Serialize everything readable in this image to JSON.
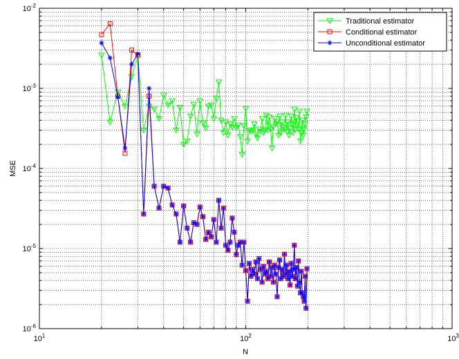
{
  "chart_data": {
    "type": "line",
    "xlabel": "N",
    "ylabel": "MSE",
    "x_scale": "log",
    "y_scale": "log",
    "xlim": [
      10,
      1000
    ],
    "ylim": [
      1e-06,
      0.01
    ],
    "x_ticks": [
      {
        "value": 10,
        "base": "10",
        "exp": "1"
      },
      {
        "value": 100,
        "base": "10",
        "exp": "2"
      },
      {
        "value": 1000,
        "base": "10",
        "exp": "3"
      }
    ],
    "y_ticks": [
      {
        "value": 1e-06,
        "base": "10",
        "exp": "-6"
      },
      {
        "value": 1e-05,
        "base": "10",
        "exp": "-5"
      },
      {
        "value": 0.0001,
        "base": "10",
        "exp": "-4"
      },
      {
        "value": 0.001,
        "base": "10",
        "exp": "-3"
      },
      {
        "value": 0.01,
        "base": "10",
        "exp": "-2"
      }
    ],
    "grid": true,
    "legend_position": "top-right",
    "series": [
      {
        "name": "Traditional estimator",
        "color": "#00ff00",
        "marker": "triangle-down",
        "points": [
          [
            20,
            0.0026
          ],
          [
            22,
            0.00038
          ],
          [
            24,
            0.0009
          ],
          [
            26,
            0.0006
          ],
          [
            28,
            0.0014
          ],
          [
            30,
            0.0026
          ],
          [
            32,
            0.0003
          ],
          [
            34,
            0.0006
          ],
          [
            36,
            0.00055
          ],
          [
            38,
            0.00042
          ],
          [
            40,
            0.00082
          ],
          [
            42,
            0.00062
          ],
          [
            44,
            0.0007
          ],
          [
            46,
            0.0003
          ],
          [
            48,
            0.00058
          ],
          [
            50,
            0.0002
          ],
          [
            52,
            0.00022
          ],
          [
            54,
            0.00045
          ],
          [
            56,
            0.00063
          ],
          [
            58,
            0.00027
          ],
          [
            60,
            0.0007
          ],
          [
            62,
            0.00037
          ],
          [
            64,
            0.00032
          ],
          [
            66,
            0.0006
          ],
          [
            68,
            0.00062
          ],
          [
            70,
            0.00042
          ],
          [
            72,
            0.00075
          ],
          [
            74,
            0.0012
          ],
          [
            76,
            0.0004
          ],
          [
            78,
            0.00028
          ],
          [
            80,
            0.00038
          ],
          [
            82,
            0.00026
          ],
          [
            84,
            0.00036
          ],
          [
            86,
            0.00033
          ],
          [
            88,
            0.00042
          ],
          [
            90,
            0.00032
          ],
          [
            92,
            0.00035
          ],
          [
            94,
            0.00025
          ],
          [
            96,
            0.00015
          ],
          [
            98,
            0.00034
          ],
          [
            100,
            0.00056
          ],
          [
            102,
            0.00022
          ],
          [
            104,
            0.0003
          ],
          [
            106,
            0.00029
          ],
          [
            108,
            0.0003
          ],
          [
            110,
            0.00036
          ],
          [
            112,
            0.00027
          ],
          [
            114,
            0.00024
          ],
          [
            116,
            0.00031
          ],
          [
            118,
            0.00029
          ],
          [
            120,
            0.00042
          ],
          [
            122,
            0.00028
          ],
          [
            124,
            0.0003
          ],
          [
            126,
            0.00046
          ],
          [
            128,
            0.0003
          ],
          [
            130,
            0.00044
          ],
          [
            132,
            0.00031
          ],
          [
            134,
            0.00018
          ],
          [
            136,
            0.00033
          ],
          [
            138,
            0.00042
          ],
          [
            140,
            0.00036
          ],
          [
            142,
            0.00038
          ],
          [
            144,
            0.00026
          ],
          [
            146,
            0.00045
          ],
          [
            148,
            0.00028
          ],
          [
            150,
            0.00038
          ],
          [
            152,
            0.00033
          ],
          [
            154,
            0.00031
          ],
          [
            156,
            0.00046
          ],
          [
            158,
            0.00029
          ],
          [
            160,
            0.00038
          ],
          [
            162,
            0.00026
          ],
          [
            164,
            0.00032
          ],
          [
            166,
            0.00045
          ],
          [
            168,
            0.00036
          ],
          [
            170,
            0.00028
          ],
          [
            172,
            0.00055
          ],
          [
            174,
            0.00031
          ],
          [
            176,
            0.00043
          ],
          [
            178,
            0.00035
          ],
          [
            180,
            0.00031
          ],
          [
            182,
            0.00052
          ],
          [
            184,
            0.00022
          ],
          [
            186,
            0.00028
          ],
          [
            188,
            0.0004
          ],
          [
            190,
            0.00026
          ],
          [
            192,
            0.00031
          ],
          [
            194,
            0.00036
          ],
          [
            196,
            0.00044
          ],
          [
            198,
            0.00052
          ]
        ]
      },
      {
        "name": "Conditional estimator",
        "color": "#ff0000",
        "marker": "square",
        "points": [
          [
            20,
            0.0047
          ],
          [
            22,
            0.0064
          ],
          [
            24,
            0.0008
          ],
          [
            26,
            0.000155
          ],
          [
            28,
            0.003
          ],
          [
            30,
            0.0026
          ],
          [
            32,
            2.7e-05
          ],
          [
            34,
            0.0008
          ],
          [
            36,
            6e-05
          ],
          [
            38,
            3.2e-05
          ],
          [
            40,
            6e-05
          ],
          [
            42,
            5.7e-05
          ],
          [
            44,
            3.5e-05
          ],
          [
            46,
            2.7e-05
          ],
          [
            48,
            1.2e-05
          ],
          [
            50,
            3.4e-05
          ],
          [
            52,
            1.8e-05
          ],
          [
            54,
            1.2e-05
          ],
          [
            56,
            2.1e-05
          ],
          [
            58,
            2e-05
          ],
          [
            60,
            3.3e-05
          ],
          [
            62,
            2.5e-05
          ],
          [
            64,
            1.3e-05
          ],
          [
            66,
            1.6e-05
          ],
          [
            68,
            1.4e-05
          ],
          [
            70,
            2.3e-05
          ],
          [
            72,
            1.2e-05
          ],
          [
            74,
            4e-05
          ],
          [
            76,
            1.8e-05
          ],
          [
            78,
            3.2e-05
          ],
          [
            80,
            1.1e-05
          ],
          [
            82,
            9.5e-06
          ],
          [
            84,
            1.2e-05
          ],
          [
            86,
            2.4e-05
          ],
          [
            88,
            1.6e-05
          ],
          [
            90,
            8.4e-06
          ],
          [
            92,
            1.1e-05
          ],
          [
            94,
            1.2e-05
          ],
          [
            96,
            6.2e-06
          ],
          [
            98,
            1.2e-05
          ],
          [
            100,
            5.3e-06
          ],
          [
            102,
            2.2e-06
          ],
          [
            104,
            6.5e-06
          ],
          [
            106,
            4.5e-06
          ],
          [
            108,
            5.5e-06
          ],
          [
            110,
            4.8e-06
          ],
          [
            112,
            6.8e-06
          ],
          [
            114,
            4.2e-06
          ],
          [
            116,
            7.5e-06
          ],
          [
            118,
            5.5e-06
          ],
          [
            120,
            3.8e-06
          ],
          [
            122,
            6e-06
          ],
          [
            124,
            4.8e-06
          ],
          [
            126,
            5.2e-06
          ],
          [
            128,
            4.2e-06
          ],
          [
            130,
            6.8e-06
          ],
          [
            132,
            4.5e-06
          ],
          [
            134,
            5.8e-06
          ],
          [
            136,
            3.8e-06
          ],
          [
            138,
            6.2e-06
          ],
          [
            140,
            4.8e-06
          ],
          [
            142,
            2.5e-06
          ],
          [
            144,
            5.8e-06
          ],
          [
            146,
            7.2e-06
          ],
          [
            148,
            4.2e-06
          ],
          [
            150,
            5.5e-06
          ],
          [
            152,
            4.5e-06
          ],
          [
            154,
            8.5e-06
          ],
          [
            156,
            4.8e-06
          ],
          [
            158,
            6.2e-06
          ],
          [
            160,
            4.2e-06
          ],
          [
            162,
            5.2e-06
          ],
          [
            164,
            3.5e-06
          ],
          [
            166,
            6.5e-06
          ],
          [
            168,
            4.5e-06
          ],
          [
            170,
            5.5e-06
          ],
          [
            172,
            1.1e-05
          ],
          [
            174,
            4.2e-06
          ],
          [
            176,
            5.8e-06
          ],
          [
            178,
            3.4e-06
          ],
          [
            180,
            7e-06
          ],
          [
            182,
            3.8e-06
          ],
          [
            184,
            2.8e-06
          ],
          [
            186,
            5.2e-06
          ],
          [
            188,
            2.8e-06
          ],
          [
            190,
            2.5e-06
          ],
          [
            192,
            2.2e-06
          ],
          [
            194,
            4.5e-06
          ],
          [
            196,
            1.8e-06
          ],
          [
            198,
            5.6e-06
          ]
        ]
      },
      {
        "name": "Unconditional estimator",
        "color": "#0000ff",
        "marker": "asterisk",
        "points": [
          [
            20,
            0.0037
          ],
          [
            22,
            0.0024
          ],
          [
            24,
            0.00078
          ],
          [
            26,
            0.00018
          ],
          [
            28,
            0.002
          ],
          [
            30,
            0.0027
          ],
          [
            32,
            2.7e-05
          ],
          [
            34,
            0.001
          ],
          [
            36,
            6e-05
          ],
          [
            38,
            3.2e-05
          ],
          [
            40,
            6e-05
          ],
          [
            42,
            5.7e-05
          ],
          [
            44,
            3.5e-05
          ],
          [
            46,
            2.7e-05
          ],
          [
            48,
            1.2e-05
          ],
          [
            50,
            3.4e-05
          ],
          [
            52,
            1.8e-05
          ],
          [
            54,
            1.2e-05
          ],
          [
            56,
            2.1e-05
          ],
          [
            58,
            2e-05
          ],
          [
            60,
            3.3e-05
          ],
          [
            62,
            2.5e-05
          ],
          [
            64,
            1.3e-05
          ],
          [
            66,
            1.6e-05
          ],
          [
            68,
            1.4e-05
          ],
          [
            70,
            2.3e-05
          ],
          [
            72,
            1.2e-05
          ],
          [
            74,
            4e-05
          ],
          [
            76,
            1.8e-05
          ],
          [
            78,
            3.2e-05
          ],
          [
            80,
            1.1e-05
          ],
          [
            82,
            9.5e-06
          ],
          [
            84,
            1.2e-05
          ],
          [
            86,
            2.4e-05
          ],
          [
            88,
            1.6e-05
          ],
          [
            90,
            8.4e-06
          ],
          [
            92,
            1.1e-05
          ],
          [
            94,
            1.2e-05
          ],
          [
            96,
            6.2e-06
          ],
          [
            98,
            1.2e-05
          ],
          [
            100,
            5.3e-06
          ],
          [
            102,
            2.2e-06
          ],
          [
            104,
            6.5e-06
          ],
          [
            106,
            4.5e-06
          ],
          [
            108,
            5.5e-06
          ],
          [
            110,
            4.8e-06
          ],
          [
            112,
            6.8e-06
          ],
          [
            114,
            4.2e-06
          ],
          [
            116,
            7.5e-06
          ],
          [
            118,
            5.5e-06
          ],
          [
            120,
            3.8e-06
          ],
          [
            122,
            6e-06
          ],
          [
            124,
            4.8e-06
          ],
          [
            126,
            5.2e-06
          ],
          [
            128,
            4.2e-06
          ],
          [
            130,
            6.8e-06
          ],
          [
            132,
            4.5e-06
          ],
          [
            134,
            5.8e-06
          ],
          [
            136,
            3.8e-06
          ],
          [
            138,
            6.2e-06
          ],
          [
            140,
            4.8e-06
          ],
          [
            142,
            2.5e-06
          ],
          [
            144,
            5.8e-06
          ],
          [
            146,
            7.2e-06
          ],
          [
            148,
            4.2e-06
          ],
          [
            150,
            5.5e-06
          ],
          [
            152,
            4.5e-06
          ],
          [
            154,
            8.5e-06
          ],
          [
            156,
            4.8e-06
          ],
          [
            158,
            6.2e-06
          ],
          [
            160,
            4.2e-06
          ],
          [
            162,
            5.2e-06
          ],
          [
            164,
            3.5e-06
          ],
          [
            166,
            6.5e-06
          ],
          [
            168,
            4.5e-06
          ],
          [
            170,
            5.5e-06
          ],
          [
            172,
            1.1e-05
          ],
          [
            174,
            4.2e-06
          ],
          [
            176,
            5.8e-06
          ],
          [
            178,
            3.4e-06
          ],
          [
            180,
            7e-06
          ],
          [
            182,
            3.8e-06
          ],
          [
            184,
            2.8e-06
          ],
          [
            186,
            5.2e-06
          ],
          [
            188,
            2.8e-06
          ],
          [
            190,
            2.5e-06
          ],
          [
            192,
            2.2e-06
          ],
          [
            194,
            4.5e-06
          ],
          [
            196,
            1.8e-06
          ],
          [
            198,
            5.6e-06
          ]
        ]
      }
    ]
  }
}
